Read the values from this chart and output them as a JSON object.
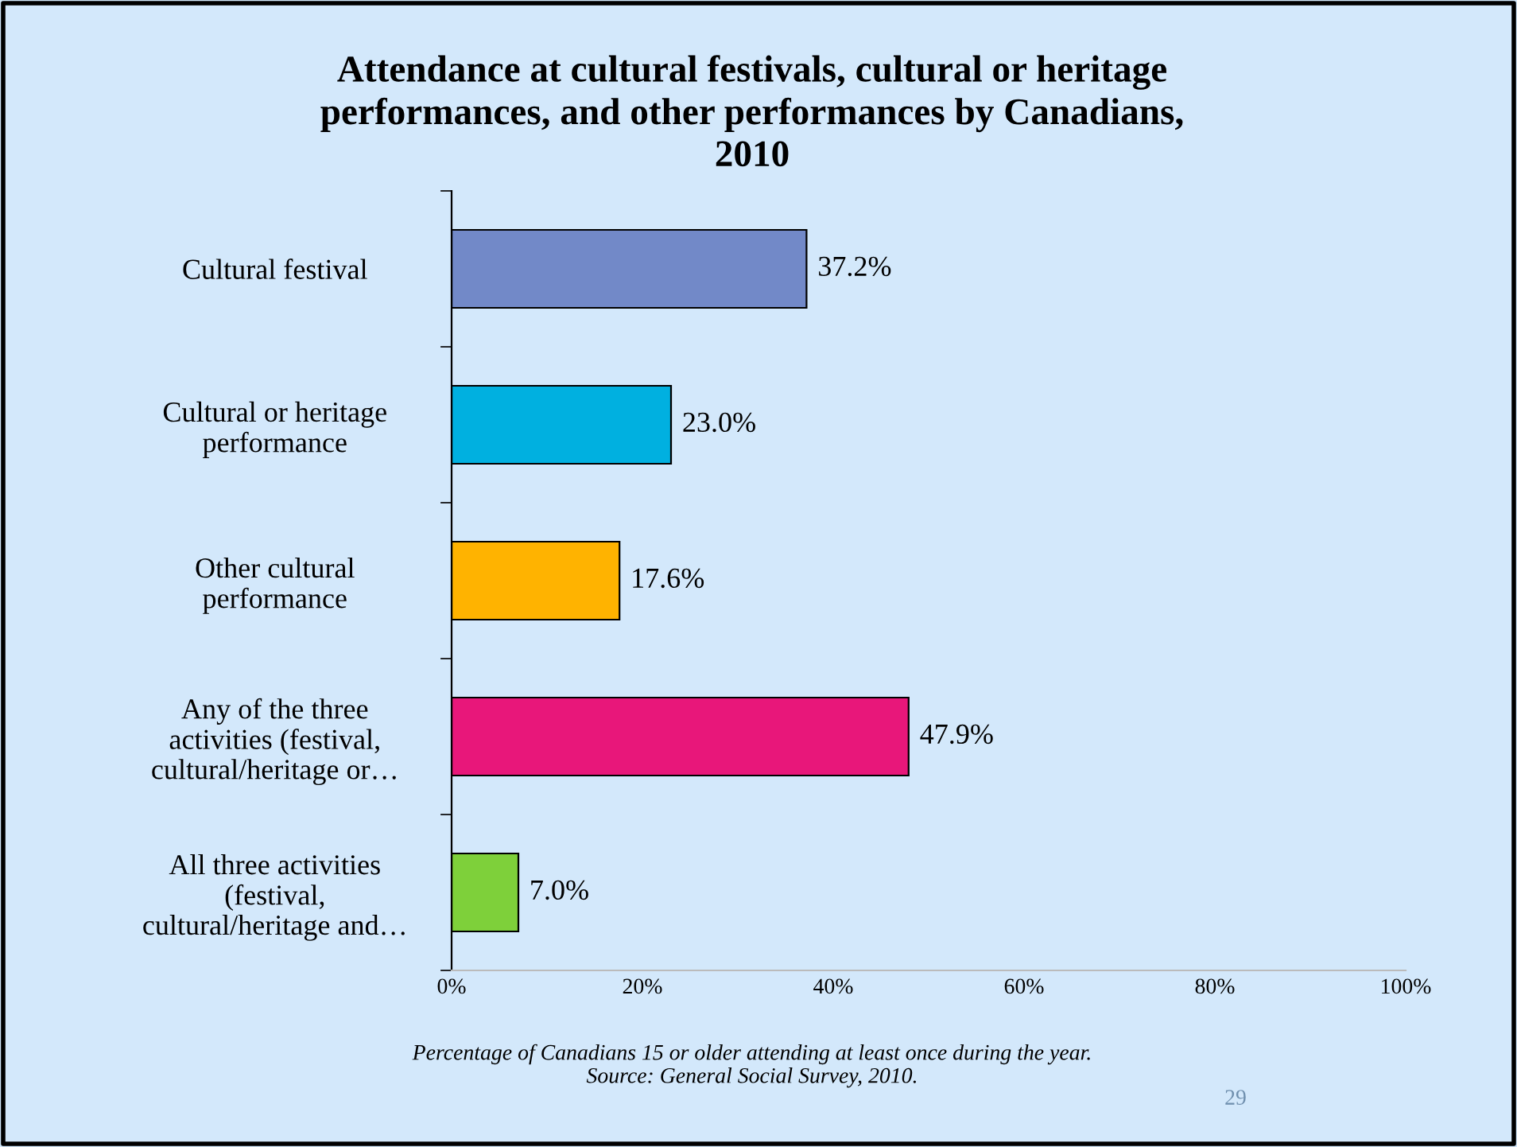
{
  "chart_data": {
    "type": "bar",
    "orientation": "horizontal",
    "title": "Attendance at cultural festivals, cultural or heritage\nperformances, and other performances by Canadians,\n2010",
    "categories": [
      "Cultural festival",
      "Cultural or heritage\nperformance",
      "Other cultural\nperformance",
      "Any of the three\nactivities (festival,\ncultural/heritage or…",
      "All three activities\n(festival,\ncultural/heritage and…"
    ],
    "values": [
      37.2,
      23.0,
      17.6,
      47.9,
      7.0
    ],
    "colors": [
      "#7289c8",
      "#00b0e0",
      "#ffb300",
      "#e8177a",
      "#7ed03a"
    ],
    "value_labels": [
      "37.2%",
      "23.0%",
      "17.6%",
      "47.9%",
      "7.0%"
    ],
    "xlim": [
      0,
      100
    ],
    "xticks": [
      {
        "value": 0,
        "label": "0%"
      },
      {
        "value": 20,
        "label": "20%"
      },
      {
        "value": 40,
        "label": "40%"
      },
      {
        "value": 60,
        "label": "60%"
      },
      {
        "value": 80,
        "label": "80%"
      },
      {
        "value": 100,
        "label": "100%"
      }
    ],
    "grid": false,
    "annotations": [
      "Percentage of Canadians 15 or older attending at least once during the year.\nSource: General Social Survey, 2010.",
      "29"
    ]
  }
}
